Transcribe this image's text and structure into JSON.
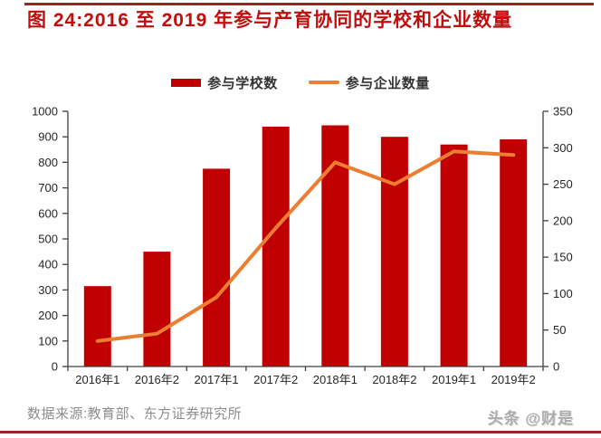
{
  "header": {
    "title": "图 24:2016 至 2019 年参与产育协同的学校和企业数量"
  },
  "legend": [
    {
      "label": "参与学校数",
      "type": "bar",
      "color": "#C00000"
    },
    {
      "label": "参与企业数量",
      "type": "line",
      "color": "#ED7D31"
    }
  ],
  "chart_data": {
    "type": "combo",
    "title": "2016 至 2019 年参与产育协同的学校和企业数量",
    "categories": [
      "2016年1",
      "2016年2",
      "2017年1",
      "2017年2",
      "2018年1",
      "2018年2",
      "2019年1",
      "2019年2"
    ],
    "series": [
      {
        "name": "参与学校数",
        "type": "bar",
        "axis": "left",
        "color": "#C00000",
        "values": [
          315,
          450,
          775,
          940,
          945,
          900,
          870,
          890
        ]
      },
      {
        "name": "参与企业数量",
        "type": "line",
        "axis": "right",
        "color": "#ED7D31",
        "values": [
          35,
          45,
          95,
          190,
          280,
          250,
          295,
          290
        ]
      }
    ],
    "left_axis": {
      "min": 0,
      "max": 1000,
      "step": 100
    },
    "right_axis": {
      "min": 0,
      "max": 350,
      "step": 50
    },
    "grid": false,
    "legend_position": "top"
  },
  "footer": {
    "source": "数据来源:教育部、东方证券研究所",
    "watermark": "头条 @财是"
  },
  "colors": {
    "title_red": "#C30D0D",
    "rule_red": "#9B2323",
    "bar_red": "#C00000",
    "line_orange": "#ED7D31",
    "axis_text": "#262626",
    "axis_line": "#404040",
    "source_gray": "#8C8C8C"
  }
}
